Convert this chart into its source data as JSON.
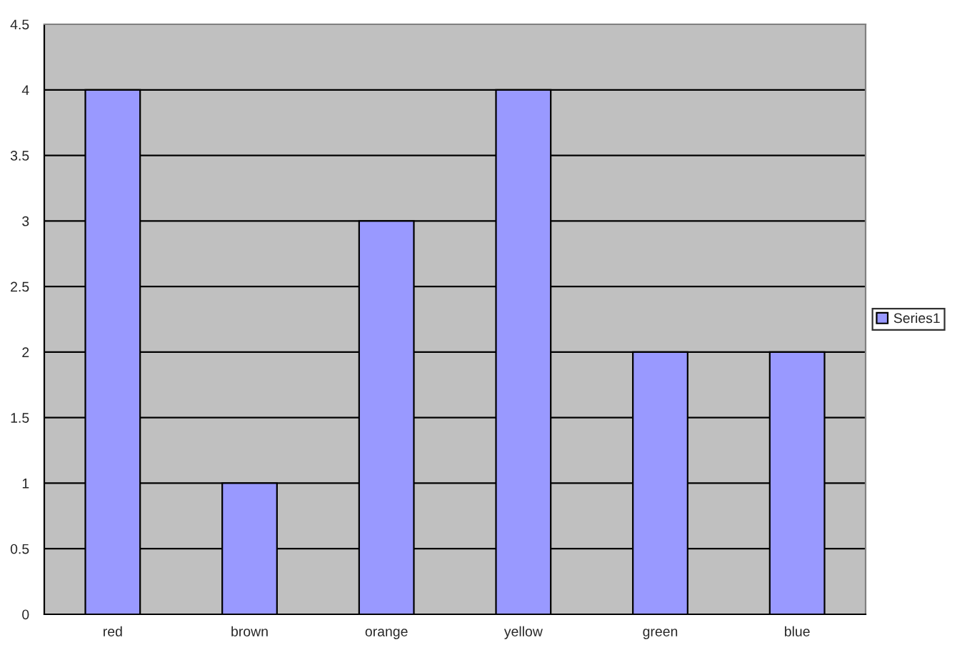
{
  "chart_data": {
    "type": "bar",
    "categories": [
      "red",
      "brown",
      "orange",
      "yellow",
      "green",
      "blue"
    ],
    "series": [
      {
        "name": "Series1",
        "color": "#9999ff",
        "values": [
          4,
          1,
          3,
          4,
          2,
          2
        ]
      }
    ],
    "ylim": [
      0,
      4.5
    ],
    "yticks": [
      0,
      0.5,
      1,
      1.5,
      2,
      2.5,
      3,
      3.5,
      4,
      4.5
    ],
    "grid": "y",
    "legend": "right"
  }
}
